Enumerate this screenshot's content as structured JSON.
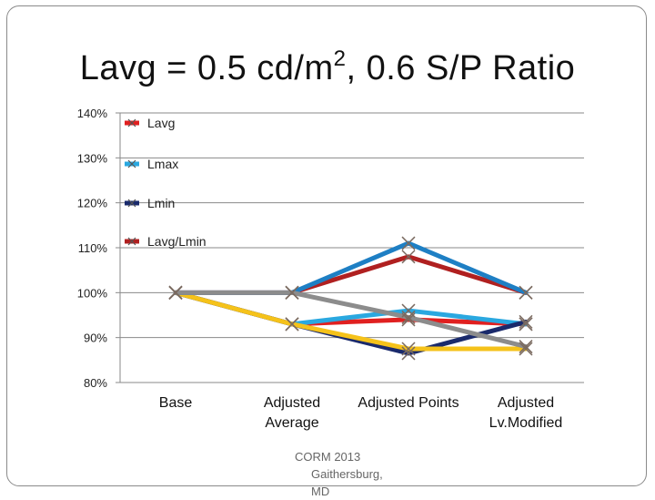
{
  "slide": {
    "title_main": "Lavg = 0.5 cd/m",
    "title_sup": "2",
    "title_rest": ", 0.6 S/P Ratio",
    "footer_line1": "CORM 2013",
    "footer_line2": "Gaithersburg, MD"
  },
  "chart_data": {
    "type": "line",
    "categories": [
      [
        "Base"
      ],
      [
        "Adjusted",
        "Average"
      ],
      [
        "Adjusted Points"
      ],
      [
        "Adjusted",
        "Lv.Modified"
      ]
    ],
    "ylim": [
      80,
      140
    ],
    "yticks": [
      80,
      90,
      100,
      110,
      120,
      130,
      140
    ],
    "ytick_suffix": "%",
    "grid": true,
    "legend_position": "top-left",
    "legend": [
      "Lavg",
      "Lmax",
      "Lmin",
      "Lavg/Lmin"
    ],
    "series": [
      {
        "name": "Lavg",
        "color": "#e02020",
        "values": [
          100,
          93,
          94,
          93
        ],
        "in_legend": true
      },
      {
        "name": "Lmax",
        "color": "#2aa8e0",
        "values": [
          100,
          93,
          96,
          93
        ],
        "in_legend": true
      },
      {
        "name": "Lmin",
        "color": "#1a2a6c",
        "values": [
          100,
          93,
          86.5,
          93.5
        ],
        "in_legend": true
      },
      {
        "name": "Lavg/Lmin",
        "color": "#b02020",
        "values": [
          100,
          100,
          108,
          100
        ],
        "in_legend": true
      },
      {
        "name": "",
        "color": "#f5c21a",
        "values": [
          100,
          93,
          87.5,
          87.5
        ],
        "in_legend": false
      },
      {
        "name": "",
        "color": "#1e7fc4",
        "values": [
          100,
          100,
          111,
          100
        ],
        "in_legend": false
      },
      {
        "name": "",
        "color": "#8c8c8c",
        "values": [
          100,
          100,
          94.5,
          88
        ],
        "in_legend": false
      }
    ]
  }
}
